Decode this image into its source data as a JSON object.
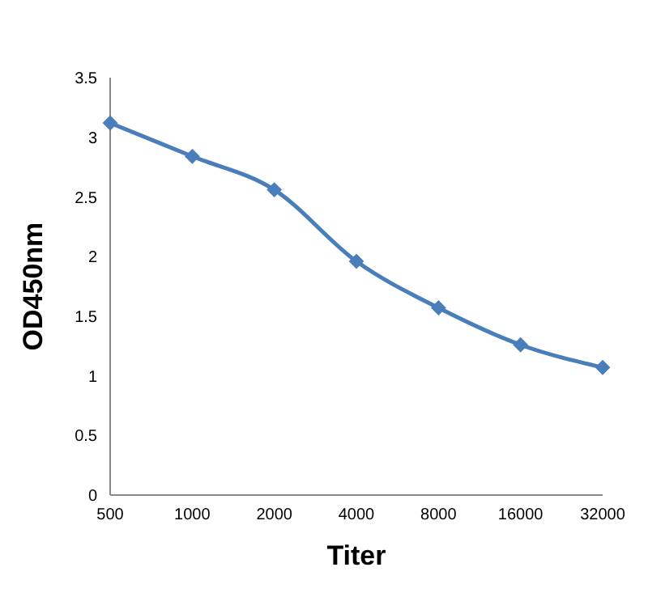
{
  "chart_data": {
    "type": "line",
    "xlabel": "Titer",
    "ylabel": "OD450nm",
    "categories": [
      "500",
      "1000",
      "2000",
      "4000",
      "8000",
      "16000",
      "32000"
    ],
    "series": [
      {
        "color": "#4a7ebb",
        "values": [
          3.12,
          2.84,
          2.56,
          1.96,
          1.57,
          1.26,
          1.07
        ]
      }
    ],
    "ylim": [
      0,
      3.5
    ],
    "yticks": [
      0,
      0.5,
      1,
      1.5,
      2,
      2.5,
      3,
      3.5
    ],
    "grid": false,
    "legend": false,
    "marker": "diamond",
    "line_style": "solid"
  }
}
